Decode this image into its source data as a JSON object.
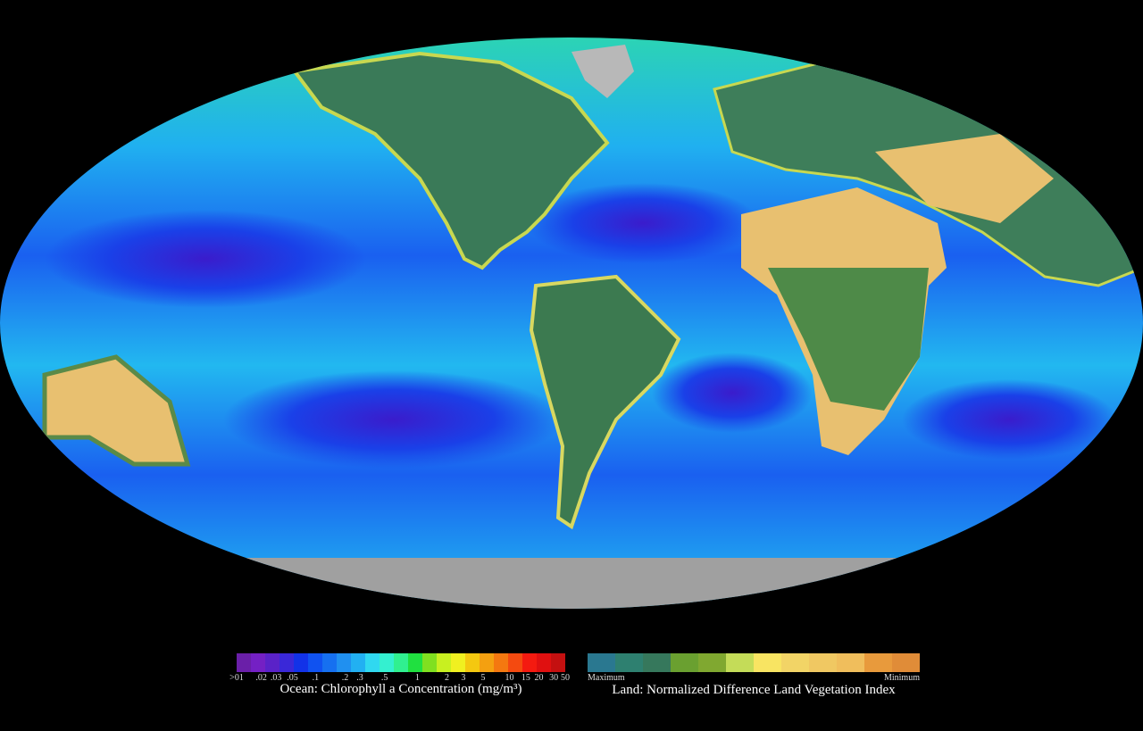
{
  "map": {
    "projection": "mollweide",
    "ocean_color": "#1a78f0",
    "ice_color": "#a0a0a0"
  },
  "ocean_legend": {
    "caption": "Ocean:  Chlorophyll a Concentration (mg/m³)",
    "ticks": [
      ">01",
      ".02",
      ".03",
      ".05",
      ".1",
      ".2",
      ".3",
      ".5",
      "1",
      "2",
      "3",
      "5",
      "10",
      "15",
      "20",
      "30",
      "50"
    ],
    "colors": [
      "#6a1fa8",
      "#7420c4",
      "#5a22c8",
      "#3a28d8",
      "#1232e8",
      "#1052f0",
      "#1670f0",
      "#2090f0",
      "#22b0f2",
      "#30d8f0",
      "#34f0d0",
      "#30f090",
      "#20e040",
      "#80e020",
      "#c8f020",
      "#f0f020",
      "#f4c810",
      "#f4a010",
      "#f47810",
      "#f44a10",
      "#f41a10",
      "#e01010",
      "#c41010"
    ]
  },
  "land_legend": {
    "caption": "Land:  Normalized Difference Land Vegetation Index",
    "max_label": "Maximum",
    "min_label": "Minimum",
    "colors": [
      "#2a7890",
      "#2e8070",
      "#36785c",
      "#6aa030",
      "#80a830",
      "#c4dc58",
      "#f8e462",
      "#f2d466",
      "#f0c862",
      "#f0be5c",
      "#e89a3c",
      "#e08c38"
    ]
  }
}
